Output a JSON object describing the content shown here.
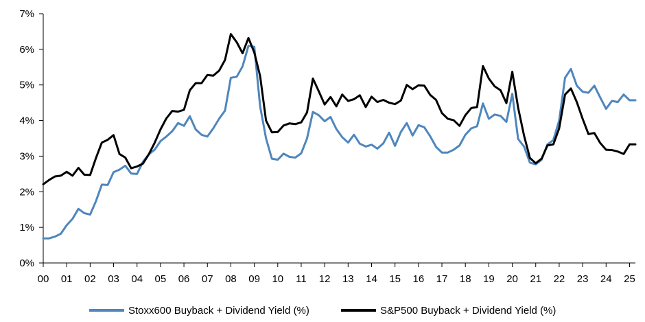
{
  "chart_data": {
    "type": "line",
    "title": "",
    "xlabel": "",
    "ylabel": "",
    "x_ticks": [
      "00",
      "01",
      "02",
      "03",
      "04",
      "05",
      "06",
      "07",
      "08",
      "09",
      "10",
      "11",
      "12",
      "13",
      "14",
      "15",
      "16",
      "17",
      "18",
      "19",
      "20",
      "21",
      "22",
      "23",
      "24",
      "25"
    ],
    "y_ticks": [
      "0%",
      "1%",
      "2%",
      "3%",
      "4%",
      "5%",
      "6%",
      "7%"
    ],
    "xlim": [
      2000.0,
      2025.25
    ],
    "ylim": [
      0,
      7
    ],
    "grid": false,
    "legend_position": "bottom",
    "colors": {
      "stoxx": "#4f86bd",
      "sp500": "#000000"
    },
    "series": [
      {
        "name": "Stoxx600 Buyback + Dividend Yield (%)",
        "color": "#4f86bd",
        "x": [
          2000.0,
          2000.25,
          2000.5,
          2000.75,
          2001.0,
          2001.25,
          2001.5,
          2001.75,
          2002.0,
          2002.25,
          2002.5,
          2002.75,
          2003.0,
          2003.25,
          2003.5,
          2003.75,
          2004.0,
          2004.25,
          2004.5,
          2004.75,
          2005.0,
          2005.25,
          2005.5,
          2005.75,
          2006.0,
          2006.25,
          2006.5,
          2006.75,
          2007.0,
          2007.25,
          2007.5,
          2007.75,
          2008.0,
          2008.25,
          2008.5,
          2008.75,
          2009.0,
          2009.25,
          2009.5,
          2009.75,
          2010.0,
          2010.25,
          2010.5,
          2010.75,
          2011.0,
          2011.25,
          2011.5,
          2011.75,
          2012.0,
          2012.25,
          2012.5,
          2012.75,
          2013.0,
          2013.25,
          2013.5,
          2013.75,
          2014.0,
          2014.25,
          2014.5,
          2014.75,
          2015.0,
          2015.25,
          2015.5,
          2015.75,
          2016.0,
          2016.25,
          2016.5,
          2016.75,
          2017.0,
          2017.25,
          2017.5,
          2017.75,
          2018.0,
          2018.25,
          2018.5,
          2018.75,
          2019.0,
          2019.25,
          2019.5,
          2019.75,
          2020.0,
          2020.25,
          2020.5,
          2020.75,
          2021.0,
          2021.25,
          2021.5,
          2021.75,
          2022.0,
          2022.25,
          2022.5,
          2022.75,
          2023.0,
          2023.25,
          2023.5,
          2023.75,
          2024.0,
          2024.25,
          2024.5,
          2024.75,
          2025.0,
          2025.25
        ],
        "y": [
          0.69,
          0.69,
          0.74,
          0.82,
          1.06,
          1.24,
          1.52,
          1.4,
          1.36,
          1.74,
          2.2,
          2.19,
          2.55,
          2.62,
          2.73,
          2.51,
          2.5,
          2.84,
          3.05,
          3.18,
          3.42,
          3.55,
          3.7,
          3.93,
          3.85,
          4.12,
          3.75,
          3.6,
          3.55,
          3.78,
          4.05,
          4.28,
          5.2,
          5.23,
          5.52,
          6.1,
          6.07,
          4.4,
          3.5,
          2.93,
          2.9,
          3.07,
          2.98,
          2.96,
          3.08,
          3.5,
          4.24,
          4.15,
          3.98,
          4.1,
          3.76,
          3.53,
          3.38,
          3.6,
          3.35,
          3.27,
          3.32,
          3.21,
          3.36,
          3.66,
          3.29,
          3.68,
          3.93,
          3.58,
          3.87,
          3.81,
          3.56,
          3.26,
          3.1,
          3.1,
          3.18,
          3.3,
          3.6,
          3.78,
          3.84,
          4.48,
          4.05,
          4.17,
          4.13,
          3.96,
          4.75,
          3.48,
          3.27,
          2.82,
          2.77,
          2.9,
          3.33,
          3.45,
          4.0,
          5.2,
          5.45,
          4.98,
          4.81,
          4.78,
          4.98,
          4.65,
          4.33,
          4.55,
          4.52,
          4.73,
          4.57,
          4.57
        ]
      },
      {
        "name": "S&P500 Buyback + Dividend Yield (%)",
        "color": "#000000",
        "x": [
          2000.0,
          2000.25,
          2000.5,
          2000.75,
          2001.0,
          2001.25,
          2001.5,
          2001.75,
          2002.0,
          2002.25,
          2002.5,
          2002.75,
          2003.0,
          2003.25,
          2003.5,
          2003.75,
          2004.0,
          2004.25,
          2004.5,
          2004.75,
          2005.0,
          2005.25,
          2005.5,
          2005.75,
          2006.0,
          2006.25,
          2006.5,
          2006.75,
          2007.0,
          2007.25,
          2007.5,
          2007.75,
          2008.0,
          2008.25,
          2008.5,
          2008.75,
          2009.0,
          2009.25,
          2009.5,
          2009.75,
          2010.0,
          2010.25,
          2010.5,
          2010.75,
          2011.0,
          2011.25,
          2011.5,
          2011.75,
          2012.0,
          2012.25,
          2012.5,
          2012.75,
          2013.0,
          2013.25,
          2013.5,
          2013.75,
          2014.0,
          2014.25,
          2014.5,
          2014.75,
          2015.0,
          2015.25,
          2015.5,
          2015.75,
          2016.0,
          2016.25,
          2016.5,
          2016.75,
          2017.0,
          2017.25,
          2017.5,
          2017.75,
          2018.0,
          2018.25,
          2018.5,
          2018.75,
          2019.0,
          2019.25,
          2019.5,
          2019.75,
          2020.0,
          2020.25,
          2020.5,
          2020.75,
          2021.0,
          2021.25,
          2021.5,
          2021.75,
          2022.0,
          2022.25,
          2022.5,
          2022.75,
          2023.0,
          2023.25,
          2023.5,
          2023.75,
          2024.0,
          2024.25,
          2024.5,
          2024.75,
          2025.0,
          2025.25
        ],
        "y": [
          2.21,
          2.33,
          2.43,
          2.45,
          2.56,
          2.45,
          2.67,
          2.48,
          2.47,
          2.95,
          3.38,
          3.46,
          3.59,
          3.06,
          2.96,
          2.66,
          2.71,
          2.79,
          3.05,
          3.37,
          3.75,
          4.06,
          4.27,
          4.25,
          4.3,
          4.85,
          5.05,
          5.05,
          5.28,
          5.26,
          5.4,
          5.7,
          6.43,
          6.2,
          5.89,
          6.32,
          5.91,
          5.25,
          4.0,
          3.67,
          3.68,
          3.86,
          3.92,
          3.9,
          3.95,
          4.23,
          5.18,
          4.82,
          4.45,
          4.66,
          4.4,
          4.73,
          4.55,
          4.6,
          4.71,
          4.38,
          4.67,
          4.52,
          4.58,
          4.5,
          4.46,
          4.56,
          5.0,
          4.88,
          4.99,
          4.98,
          4.72,
          4.58,
          4.21,
          4.05,
          4.01,
          3.85,
          4.15,
          4.35,
          4.38,
          5.53,
          5.18,
          4.96,
          4.85,
          4.49,
          5.37,
          4.36,
          3.58,
          2.95,
          2.8,
          2.93,
          3.3,
          3.33,
          3.78,
          4.73,
          4.9,
          4.52,
          4.05,
          3.62,
          3.65,
          3.37,
          3.18,
          3.17,
          3.13,
          3.06,
          3.33,
          3.33
        ]
      }
    ]
  }
}
